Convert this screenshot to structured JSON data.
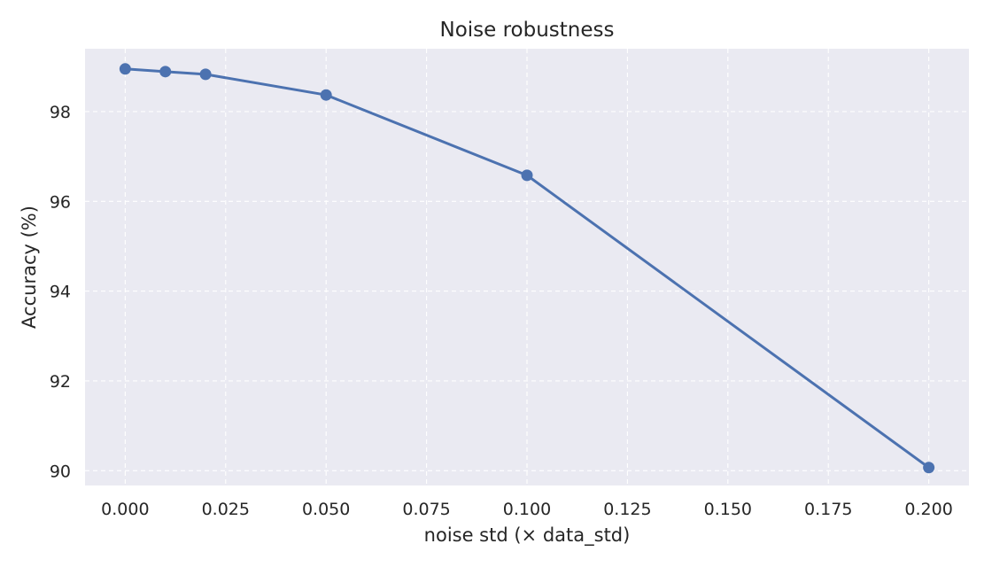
{
  "chart_data": {
    "type": "line",
    "title": "Noise robustness",
    "xlabel": "noise std (× data_std)",
    "ylabel": "Accuracy (%)",
    "xlim": [
      -0.01,
      0.21
    ],
    "ylim": [
      89.67,
      99.4
    ],
    "x_ticks": [
      0.0,
      0.025,
      0.05,
      0.075,
      0.1,
      0.125,
      0.15,
      0.175,
      0.2
    ],
    "x_tick_labels": [
      "0.000",
      "0.025",
      "0.050",
      "0.075",
      "0.100",
      "0.125",
      "0.150",
      "0.175",
      "0.200"
    ],
    "y_ticks": [
      90,
      92,
      94,
      96,
      98
    ],
    "y_tick_labels": [
      "90",
      "92",
      "94",
      "96",
      "98"
    ],
    "grid": true,
    "grid_style": "dashed",
    "series": [
      {
        "x": [
          0.0,
          0.01,
          0.02,
          0.05,
          0.1,
          0.2
        ],
        "values": [
          98.95,
          98.89,
          98.83,
          98.37,
          96.58,
          90.07
        ],
        "marker": "circle"
      }
    ],
    "colors": {
      "line": "#4c72b0",
      "plot_background": "#eaeaf2",
      "grid": "#ffffff",
      "text": "#262626"
    }
  }
}
